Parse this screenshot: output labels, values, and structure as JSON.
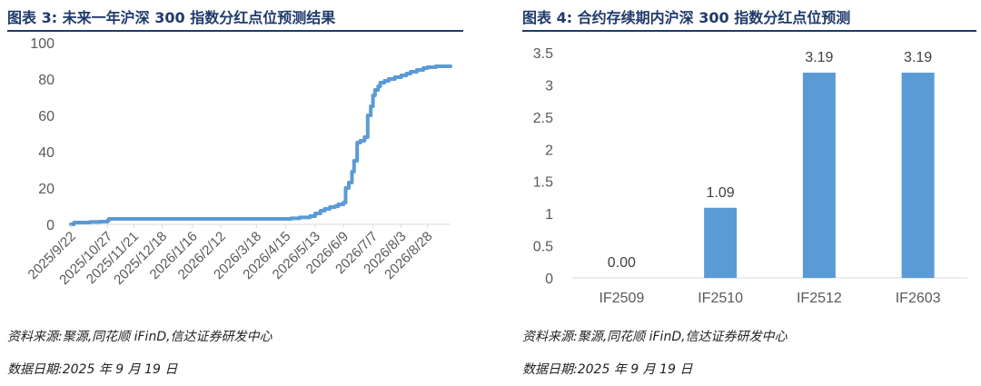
{
  "left": {
    "title": "图表 3:  未来一年沪深 300 指数分红点位预测结果",
    "source": "资料来源:聚源,同花顺 iFinD,信达证券研发中心",
    "date": "数据日期:2025 年 9 月 19 日"
  },
  "right": {
    "title": "图表 4:  合约存续期内沪深 300 指数分红点位预测",
    "source": "资料来源:聚源,同花顺 iFinD,信达证券研发中心",
    "date": "数据日期:2025 年 9 月 19 日"
  },
  "colors": {
    "title": "#1f3a6b",
    "series": "#5b9bd5",
    "axis": "#d9d9d9"
  },
  "chart_data": [
    {
      "type": "line",
      "title": "未来一年沪深 300 指数分红点位预测结果",
      "ylim": [
        0,
        100
      ],
      "yticks": [
        0,
        20,
        40,
        60,
        80,
        100
      ],
      "xlim": [
        "2025/9/22",
        "2026/9/19"
      ],
      "xticks": [
        "2025/9/22",
        "2025/10/27",
        "2025/11/21",
        "2025/12/18",
        "2026/1/16",
        "2026/2/12",
        "2026/3/18",
        "2026/4/15",
        "2026/5/13",
        "2026/6/9",
        "2026/7/7",
        "2026/8/3",
        "2026/8/28"
      ],
      "series": [
        {
          "x": [
            "2025/9/22",
            "2025/9/25",
            "2025/10/10",
            "2025/10/20",
            "2025/10/27",
            "2025/10/28",
            "2026/4/15",
            "2026/4/20",
            "2026/4/28",
            "2026/5/8",
            "2026/5/13",
            "2026/5/18",
            "2026/5/22",
            "2026/5/27",
            "2026/6/1",
            "2026/6/4",
            "2026/6/9",
            "2026/6/11",
            "2026/6/14",
            "2026/6/17",
            "2026/6/19",
            "2026/6/22",
            "2026/6/25",
            "2026/6/29",
            "2026/7/2",
            "2026/7/5",
            "2026/7/7",
            "2026/7/9",
            "2026/7/12",
            "2026/7/14",
            "2026/7/18",
            "2026/7/22",
            "2026/7/28",
            "2026/8/3",
            "2026/8/8",
            "2026/8/12",
            "2026/8/18",
            "2026/8/24",
            "2026/8/28",
            "2026/9/5",
            "2026/9/19"
          ],
          "y": [
            0,
            1,
            1.3,
            1.5,
            2,
            3,
            3,
            3.3,
            3.8,
            4.5,
            6,
            7.5,
            8.5,
            9.5,
            10,
            11,
            12,
            20,
            23,
            29,
            35,
            45,
            46,
            48,
            60,
            65,
            71,
            74,
            76,
            78,
            79,
            80,
            81,
            82,
            83,
            84,
            85,
            86,
            86.5,
            87,
            87
          ]
        }
      ]
    },
    {
      "type": "bar",
      "title": "合约存续期内沪深 300 指数分红点位预测",
      "categories": [
        "IF2509",
        "IF2510",
        "IF2512",
        "IF2603"
      ],
      "values": [
        0,
        1.09,
        3.19,
        3.19
      ],
      "labels": [
        "0.00",
        "1.09",
        "3.19",
        "3.19"
      ],
      "ylim": [
        0,
        3.5
      ],
      "yticks": [
        "0",
        "0.5",
        "1",
        "1.5",
        "2",
        "2.5",
        "3",
        "3.5"
      ]
    }
  ]
}
